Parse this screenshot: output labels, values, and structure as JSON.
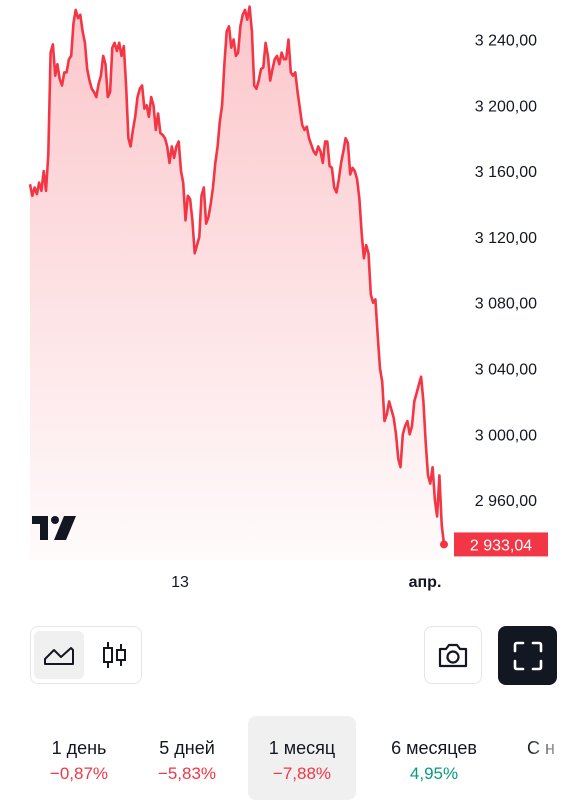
{
  "chart_data": {
    "type": "area",
    "y_ticks": [
      "3 240,00",
      "3 200,00",
      "3 160,00",
      "3 120,00",
      "3 080,00",
      "3 040,00",
      "3 000,00",
      "2 960,00"
    ],
    "y_tick_values": [
      3240,
      3200,
      3160,
      3120,
      3080,
      3040,
      3000,
      2960
    ],
    "ylim": [
      2926,
      3264
    ],
    "x_ticks": [
      "13",
      "апр."
    ],
    "last_price_label": "2 933,04",
    "last_value": 2933.04,
    "line_color": "#f23645",
    "fill_color": "#f23645",
    "values": [
      3152,
      3145,
      3150,
      3146,
      3153,
      3148,
      3160,
      3148,
      3170,
      3232,
      3237,
      3218,
      3225,
      3216,
      3212,
      3220,
      3220,
      3228,
      3230,
      3250,
      3258,
      3253,
      3255,
      3245,
      3238,
      3222,
      3215,
      3210,
      3208,
      3205,
      3213,
      3218,
      3230,
      3225,
      3205,
      3208,
      3235,
      3238,
      3233,
      3238,
      3230,
      3236,
      3212,
      3180,
      3175,
      3185,
      3193,
      3205,
      3210,
      3212,
      3198,
      3200,
      3193,
      3205,
      3200,
      3185,
      3195,
      3183,
      3182,
      3180,
      3175,
      3165,
      3175,
      3168,
      3175,
      3178,
      3160,
      3153,
      3130,
      3145,
      3143,
      3130,
      3110,
      3115,
      3120,
      3145,
      3150,
      3128,
      3132,
      3140,
      3150,
      3165,
      3175,
      3190,
      3200,
      3225,
      3245,
      3248,
      3235,
      3240,
      3230,
      3232,
      3248,
      3255,
      3258,
      3252,
      3260,
      3245,
      3212,
      3210,
      3215,
      3222,
      3223,
      3238,
      3230,
      3215,
      3222,
      3228,
      3230,
      3225,
      3232,
      3228,
      3228,
      3240,
      3220,
      3218,
      3220,
      3208,
      3198,
      3188,
      3185,
      3187,
      3180,
      3176,
      3172,
      3170,
      3175,
      3172,
      3165,
      3178,
      3178,
      3163,
      3162,
      3150,
      3147,
      3155,
      3165,
      3172,
      3180,
      3177,
      3158,
      3162,
      3160,
      3155,
      3143,
      3122,
      3107,
      3115,
      3110,
      3085,
      3080,
      3082,
      3060,
      3040,
      3032,
      3008,
      3012,
      3020,
      3015,
      3010,
      3000,
      2985,
      2980,
      3000,
      3005,
      3008,
      3000,
      3005,
      3020,
      3025,
      3030,
      3035,
      3020,
      2995,
      2975,
      2970,
      2980,
      2960,
      2950,
      2975,
      2945,
      2933.04
    ]
  },
  "toolbar": {
    "chart_type_area_icon": "area-chart-icon",
    "chart_type_candles_icon": "candlestick-icon",
    "camera_icon": "camera-icon",
    "fullscreen_icon": "fullscreen-icon"
  },
  "periods": [
    {
      "label": "1 день",
      "change": "−0,87%",
      "sign": "neg",
      "active": false
    },
    {
      "label": "5 дней",
      "change": "−5,83%",
      "sign": "neg",
      "active": false
    },
    {
      "label": "1 месяц",
      "change": "−7,88%",
      "sign": "neg",
      "active": true
    },
    {
      "label": "6 месяцев",
      "change": "4,95%",
      "sign": "pos",
      "active": false
    },
    {
      "label": "С н",
      "change": "",
      "sign": "neg",
      "active": false
    }
  ],
  "colors": {
    "negative": "#f23645",
    "positive": "#089981",
    "accent_dark": "#131722"
  }
}
